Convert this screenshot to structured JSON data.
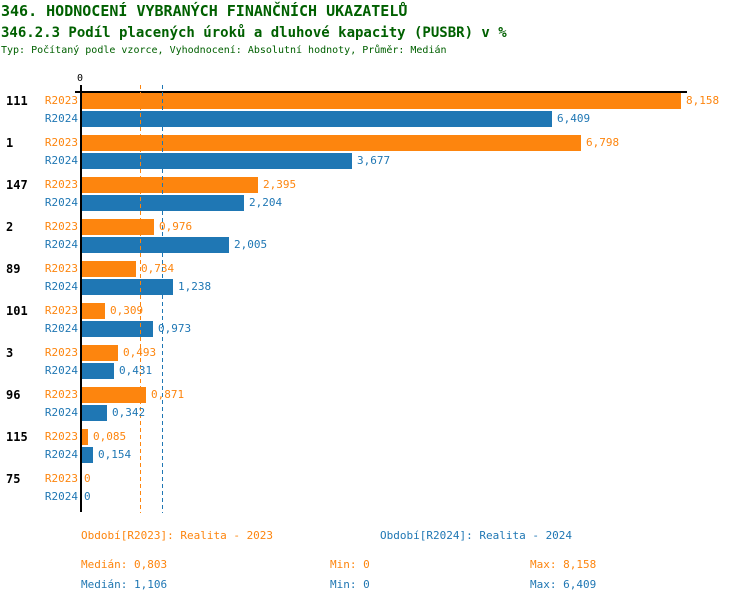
{
  "header": {
    "title": "346. HODNOCENÍ VYBRANÝCH FINANČNÍCH UKAZATELŮ",
    "subtitle": "346.2.3 Podíl placených úroků a dluhové kapacity (PUSBR) v %",
    "type_line": "Typ: Počítaný podle vzorce, Vyhodnocení: Absolutní hodnoty, Průměr: Medián"
  },
  "colors": {
    "r2023": "#fd850e",
    "r2024": "#1f77b4",
    "heading": "#006000",
    "axis": "#000000"
  },
  "chart_data": {
    "type": "bar",
    "orientation": "horizontal",
    "x_axis_tick_label": "0",
    "xlim": [
      0,
      8.25
    ],
    "grid": false,
    "categories": [
      "111",
      "1",
      "147",
      "2",
      "89",
      "101",
      "3",
      "96",
      "115",
      "75"
    ],
    "series": [
      {
        "name": "R2023",
        "color": "#fd850e",
        "values": [
          8.158,
          6.798,
          2.395,
          0.976,
          0.734,
          0.309,
          0.493,
          0.871,
          0.085,
          0
        ],
        "value_labels": [
          "8,158",
          "6,798",
          "2,395",
          "0,976",
          "0,734",
          "0,309",
          "0,493",
          "0,871",
          "0,085",
          "0"
        ],
        "median": 0.803
      },
      {
        "name": "R2024",
        "color": "#1f77b4",
        "values": [
          6.409,
          3.677,
          2.204,
          2.005,
          1.238,
          0.973,
          0.431,
          0.342,
          0.154,
          0
        ],
        "value_labels": [
          "6,409",
          "3,677",
          "2,204",
          "2,005",
          "1,238",
          "0,973",
          "0,431",
          "0,342",
          "0,154",
          "0"
        ],
        "median": 1.106
      }
    ]
  },
  "footer": {
    "period_r2023": "Období[R2023]: Realita - 2023",
    "period_r2024": "Období[R2024]: Realita - 2024",
    "r2023_stats": {
      "median": "Medián: 0,803",
      "min": "Min: 0",
      "max": "Max: 8,158"
    },
    "r2024_stats": {
      "median": "Medián: 1,106",
      "min": "Min: 0",
      "max": "Max: 6,409"
    }
  }
}
